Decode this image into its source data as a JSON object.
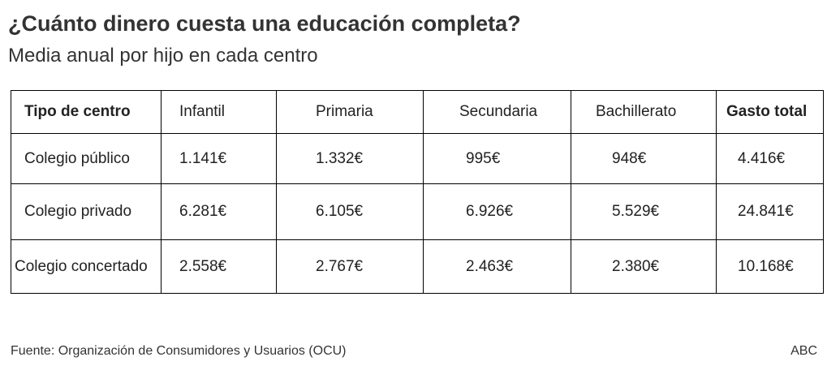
{
  "title": "¿Cuánto dinero cuesta una educación completa?",
  "subtitle": "Media anual por hijo en cada centro",
  "source": "Fuente: Organización de Consumidores y Usuarios (OCU)",
  "credit": "ABC",
  "colors": {
    "text": "#333333",
    "border": "#000000",
    "background": "#ffffff"
  },
  "chart_data": {
    "type": "table",
    "title": "¿Cuánto dinero cuesta una educación completa?",
    "subtitle": "Media anual por hijo en cada centro",
    "columns": [
      "Tipo de centro",
      "Infantil",
      "Primaria",
      "Secundaria",
      "Bachillerato",
      "Gasto total"
    ],
    "rows": [
      [
        "Colegio público",
        "1.141€",
        "1.332€",
        "995€",
        "948€",
        "4.416€"
      ],
      [
        "Colegio privado",
        "6.281€",
        "6.105€",
        "6.926€",
        "5.529€",
        "24.841€"
      ],
      [
        "Colegio concertado",
        "2.558€",
        "2.767€",
        "2.463€",
        "2.380€",
        "10.168€"
      ]
    ],
    "values": {
      "Colegio público": {
        "Infantil": 1141,
        "Primaria": 1332,
        "Secundaria": 995,
        "Bachillerato": 948,
        "Gasto total": 4416
      },
      "Colegio privado": {
        "Infantil": 6281,
        "Primaria": 6105,
        "Secundaria": 6926,
        "Bachillerato": 5529,
        "Gasto total": 24841
      },
      "Colegio concertado": {
        "Infantil": 2558,
        "Primaria": 2767,
        "Secundaria": 2463,
        "Bachillerato": 2380,
        "Gasto total": 10168
      }
    }
  }
}
